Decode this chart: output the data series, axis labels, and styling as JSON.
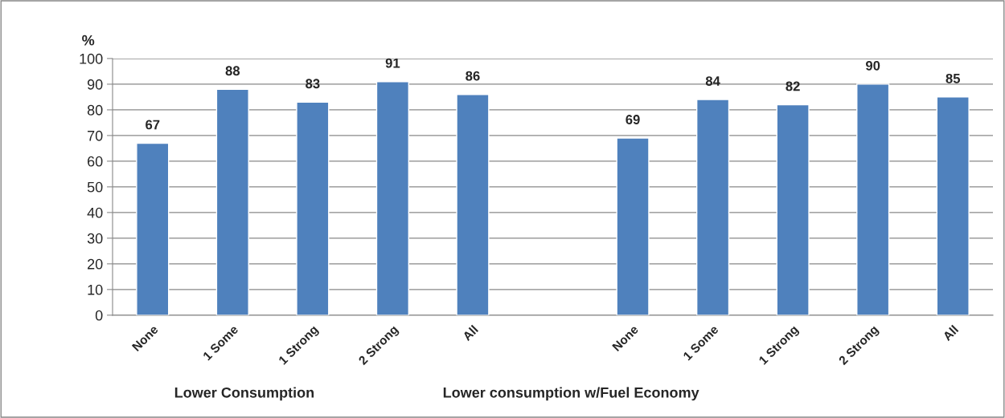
{
  "chart_data": {
    "type": "bar",
    "ylabel": "%",
    "categories": [
      "None",
      "1 Some",
      "1 Strong",
      "2 Strong",
      "All",
      null,
      "None",
      "1 Some",
      "1 Strong",
      "2 Strong",
      "All"
    ],
    "values": [
      67,
      88,
      83,
      91,
      86,
      null,
      69,
      84,
      82,
      90,
      85
    ],
    "color": "#4f81bd",
    "ylim": [
      0,
      100
    ],
    "yticks": [
      0,
      10,
      20,
      30,
      40,
      50,
      60,
      70,
      80,
      90,
      100
    ],
    "grid": "y",
    "data_labels": true,
    "legend": false,
    "annotations": [
      "Lower Consumption",
      "Lower consumption w/Fuel Economy"
    ]
  }
}
